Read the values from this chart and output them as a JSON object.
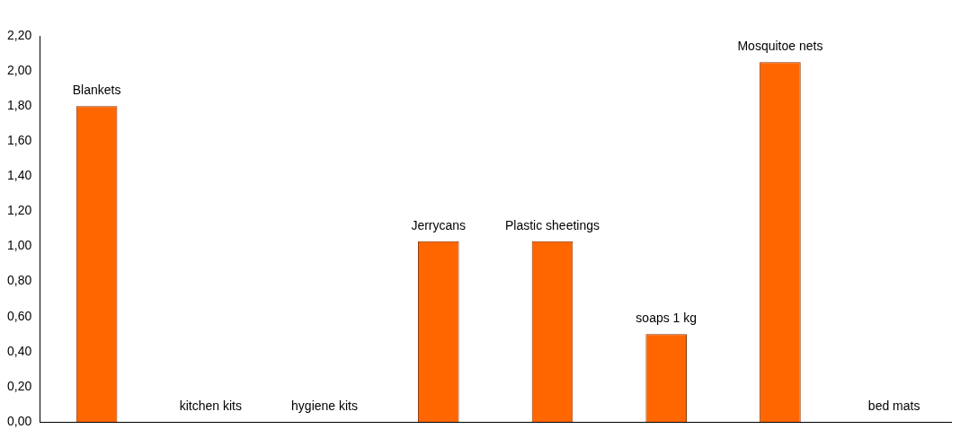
{
  "chart_data": {
    "type": "bar",
    "categories": [
      "Blankets",
      "kitchen kits",
      "hygiene kits",
      "Jerrycans",
      "Plastic sheetings",
      "soaps 1 kg",
      "Mosquitoe nets",
      "bed mats"
    ],
    "values": [
      1.8,
      0,
      0,
      1.03,
      1.03,
      0.5,
      2.05,
      0
    ],
    "color": "#ff6600",
    "ylim": [
      0,
      2.2
    ],
    "yticks": [
      {
        "value": 0,
        "label": "0,00"
      },
      {
        "value": 0.2,
        "label": "0,20"
      },
      {
        "value": 0.4,
        "label": "0,40"
      },
      {
        "value": 0.6,
        "label": "0,60"
      },
      {
        "value": 0.8,
        "label": "0,80"
      },
      {
        "value": 1,
        "label": "1,00"
      },
      {
        "value": 1.2,
        "label": "1,20"
      },
      {
        "value": 1.4,
        "label": "1,40"
      },
      {
        "value": 1.6,
        "label": "1,60"
      },
      {
        "value": 1.8,
        "label": "1,80"
      },
      {
        "value": 2,
        "label": "2,00"
      },
      {
        "value": 2.2,
        "label": "2,20"
      }
    ],
    "tick_labels": "y"
  }
}
